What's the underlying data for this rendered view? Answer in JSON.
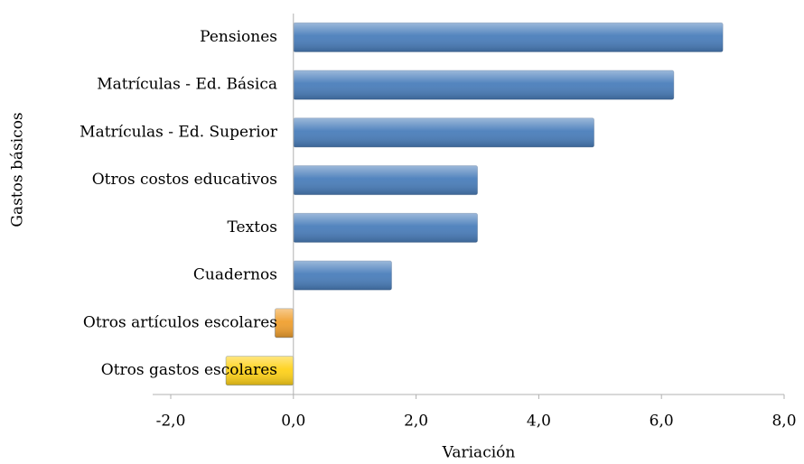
{
  "chart_data": {
    "type": "barh",
    "categories": [
      "Pensiones",
      "Matrículas - Ed. Básica",
      "Matrículas - Ed. Superior",
      "Otros costos educativos",
      "Textos",
      "Cuadernos",
      "Otros artículos escolares",
      "Otros gastos escolares"
    ],
    "values": [
      7.0,
      6.2,
      4.9,
      3.0,
      3.0,
      1.6,
      -0.3,
      -1.1
    ],
    "colors": [
      "#4a7ebb",
      "#4a7ebb",
      "#4a7ebb",
      "#4a7ebb",
      "#4a7ebb",
      "#4a7ebb",
      "#f0a030",
      "#ffd21a"
    ],
    "xlabel": "Variación",
    "ylabel": "Gastos básicos",
    "xlim": [
      -2,
      8
    ],
    "xticks": [
      {
        "value": -2,
        "label": "-2,0"
      },
      {
        "value": 0,
        "label": "0,0"
      },
      {
        "value": 2,
        "label": "2,0"
      },
      {
        "value": 4,
        "label": "4,0"
      },
      {
        "value": 6,
        "label": "6,0"
      },
      {
        "value": 8,
        "label": "8,0"
      }
    ]
  }
}
